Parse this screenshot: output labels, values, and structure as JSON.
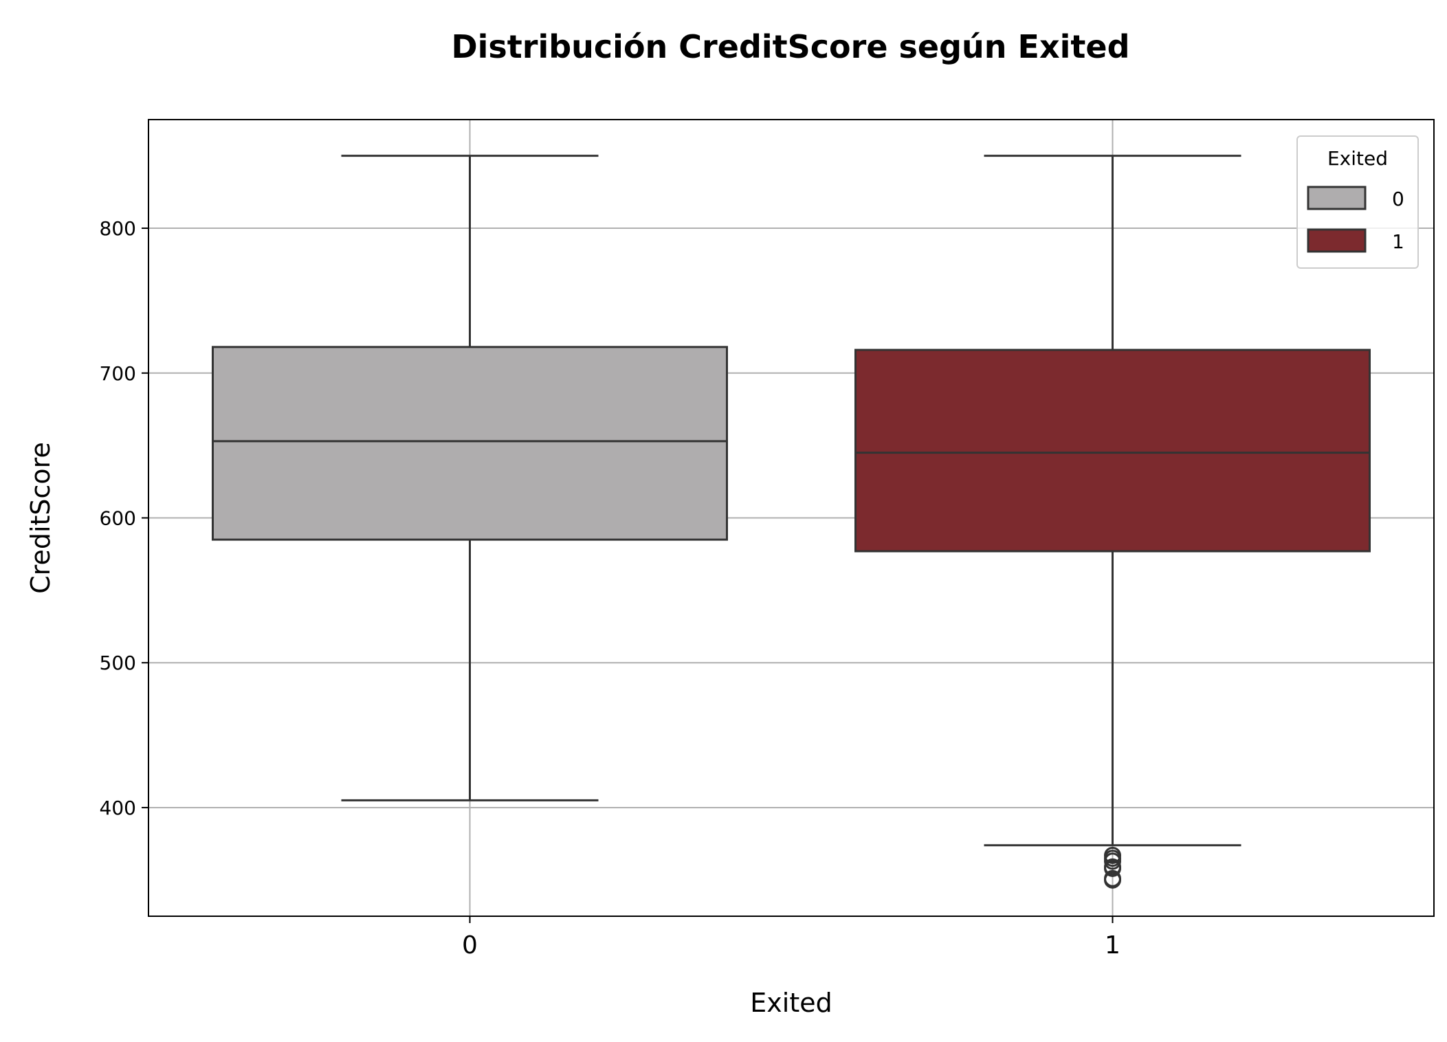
{
  "chart_data": {
    "type": "box",
    "title": "Distribución CreditScore según Exited",
    "xlabel": "Exited",
    "ylabel": "CreditScore",
    "categories": [
      "0",
      "1"
    ],
    "ylim": [
      325,
      875
    ],
    "yticks": [
      400,
      500,
      600,
      700,
      800
    ],
    "grid": true,
    "legend": {
      "title": "Exited",
      "position": "top-right",
      "entries": [
        {
          "label": "0",
          "color": "#afadae"
        },
        {
          "label": "1",
          "color": "#7c2a2e"
        }
      ]
    },
    "series": [
      {
        "category": "0",
        "color": "#afadae",
        "whisker_low": 405,
        "q1": 585,
        "median": 653,
        "q3": 718,
        "whisker_high": 850,
        "outliers": []
      },
      {
        "category": "1",
        "color": "#7c2a2e",
        "whisker_low": 374,
        "q1": 577,
        "median": 645,
        "q3": 716,
        "whisker_high": 850,
        "outliers": [
          350,
          351,
          358,
          359,
          363,
          365,
          367
        ]
      }
    ],
    "colors": {
      "edge": "#333333",
      "grid": "#b0b0b0",
      "axes": "#000000"
    }
  }
}
